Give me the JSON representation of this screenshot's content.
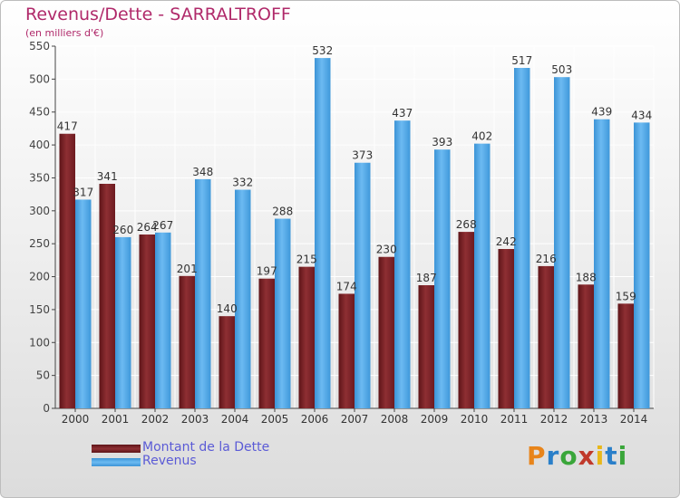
{
  "header": {
    "title": "Revenus/Dette - SARRALTROFF",
    "subtitle": "(en milliers d'€)"
  },
  "colors": {
    "dette": "#7a1f24",
    "dette_light": "#9b3a3d",
    "revenus": "#4da6e6",
    "revenus_light": "#6cb9f0",
    "title": "#b0296a",
    "legend_text": "#5b5bd6"
  },
  "chart_data": {
    "type": "bar",
    "title": "Revenus/Dette - SARRALTROFF",
    "subtitle": "(en milliers d'€)",
    "categories": [
      "2000",
      "2001",
      "2002",
      "2003",
      "2004",
      "2005",
      "2006",
      "2007",
      "2008",
      "2009",
      "2010",
      "2011",
      "2012",
      "2013",
      "2014"
    ],
    "series": [
      {
        "name": "Montant de la Dette",
        "values": [
          417,
          341,
          264,
          201,
          140,
          197,
          215,
          174,
          230,
          187,
          268,
          242,
          216,
          188,
          159
        ]
      },
      {
        "name": "Revenus",
        "values": [
          317,
          260,
          267,
          348,
          332,
          288,
          532,
          373,
          437,
          393,
          402,
          517,
          503,
          439,
          434
        ]
      }
    ],
    "ylim": [
      0,
      550
    ],
    "yticks": [
      0,
      50,
      100,
      150,
      200,
      250,
      300,
      350,
      400,
      450,
      500,
      550
    ],
    "grid": true,
    "legend_position": "bottom-left"
  },
  "legend": {
    "items": [
      {
        "label": "Montant de la Dette",
        "color_key": "dette"
      },
      {
        "label": "Revenus",
        "color_key": "revenus"
      }
    ]
  },
  "logo": {
    "text": "Proxiti",
    "letters": [
      "P",
      "r",
      "o",
      "x",
      "i",
      "t",
      "i"
    ],
    "letter_colors": [
      "#e8841a",
      "#2a7fc9",
      "#3aa63a",
      "#c0392b",
      "#e8b71a",
      "#2a7fc9",
      "#3aa63a"
    ]
  }
}
